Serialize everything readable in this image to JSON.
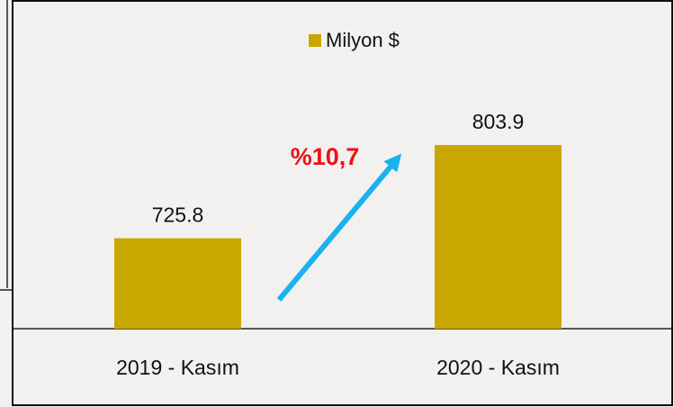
{
  "chart_data": {
    "type": "bar",
    "categories": [
      "2019 - Kasım",
      "2020 - Kasım"
    ],
    "series": [
      {
        "name": "Milyon $",
        "color": "#c8a800",
        "values": [
          725.8,
          803.9
        ]
      }
    ],
    "ylim": [
      650,
      850
    ],
    "annotation": "%10,7",
    "annotation_color": "#ee1111",
    "legend": "top"
  }
}
